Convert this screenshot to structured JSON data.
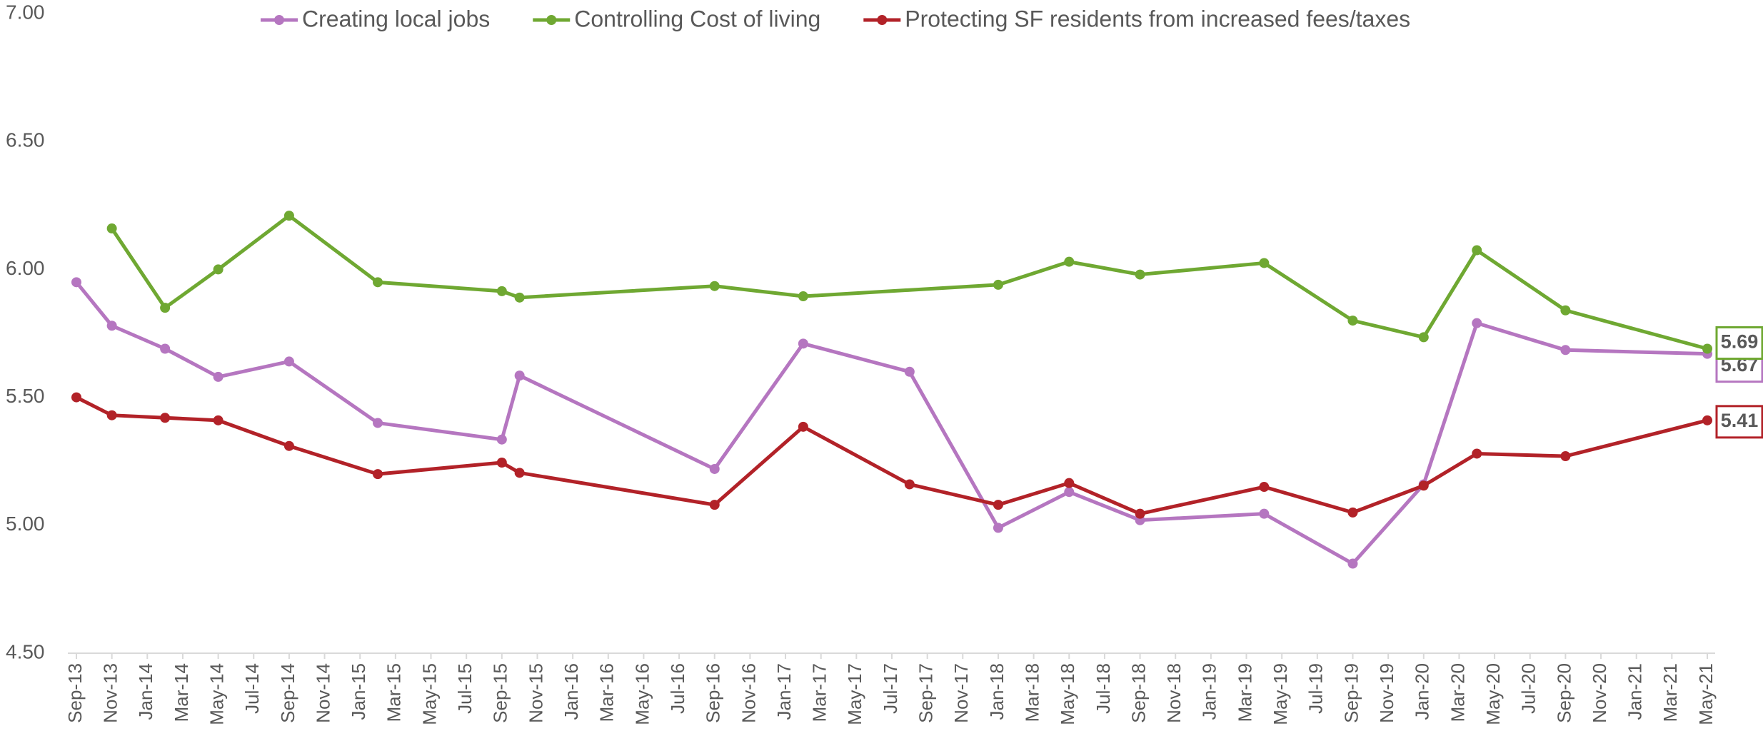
{
  "chart_data": {
    "type": "line",
    "legend": "top",
    "ylim": [
      4.5,
      7.0
    ],
    "yticks": [
      {
        "value": 4.5,
        "label": "4.50"
      },
      {
        "value": 5.0,
        "label": "5.00"
      },
      {
        "value": 5.5,
        "label": "5.50"
      },
      {
        "value": 6.0,
        "label": "6.00"
      },
      {
        "value": 6.5,
        "label": "6.50"
      },
      {
        "value": 7.0,
        "label": "7.00"
      }
    ],
    "xlim": [
      "Sep-13",
      "May-21"
    ],
    "xticks": [
      "Sep-13",
      "Nov-13",
      "Jan-14",
      "Mar-14",
      "May-14",
      "Jul-14",
      "Sep-14",
      "Nov-14",
      "Jan-15",
      "Mar-15",
      "May-15",
      "Jul-15",
      "Sep-15",
      "Nov-15",
      "Jan-16",
      "Mar-16",
      "May-16",
      "Jul-16",
      "Sep-16",
      "Nov-16",
      "Jan-17",
      "Mar-17",
      "May-17",
      "Jul-17",
      "Sep-17",
      "Nov-17",
      "Jan-18",
      "Mar-18",
      "May-18",
      "Jul-18",
      "Sep-18",
      "Nov-18",
      "Jan-19",
      "Mar-19",
      "May-19",
      "Jul-19",
      "Sep-19",
      "Nov-19",
      "Jan-20",
      "Mar-20",
      "May-20",
      "Jul-20",
      "Sep-20",
      "Nov-20",
      "Jan-21",
      "Mar-21",
      "May-21"
    ],
    "series": [
      {
        "name": "Creating local jobs",
        "color": "#b576c0",
        "x": [
          "Sep-13",
          "Nov-13",
          "Feb-14",
          "May-14",
          "Sep-14",
          "Feb-15",
          "Sep-15",
          "Oct-15",
          "Sep-16",
          "Feb-17",
          "Aug-17",
          "Jan-18",
          "May-18",
          "Sep-18",
          "Apr-19",
          "Sep-19",
          "Jan-20",
          "Apr-20",
          "Sep-20",
          "May-21"
        ],
        "values": [
          5.95,
          5.78,
          5.69,
          5.58,
          5.64,
          5.4,
          5.335,
          5.585,
          5.22,
          5.71,
          5.6,
          4.99,
          5.13,
          5.02,
          5.045,
          4.85,
          5.16,
          5.79,
          5.685,
          5.67
        ]
      },
      {
        "name": "Controlling Cost of living",
        "color": "#6fa832",
        "x": [
          "Nov-13",
          "Feb-14",
          "May-14",
          "Sep-14",
          "Feb-15",
          "Sep-15",
          "Oct-15",
          "Sep-16",
          "Feb-17",
          "Jan-18",
          "May-18",
          "Sep-18",
          "Apr-19",
          "Sep-19",
          "Jan-20",
          "Apr-20",
          "Sep-20",
          "May-21"
        ],
        "values": [
          6.16,
          5.85,
          6.0,
          6.21,
          5.95,
          5.915,
          5.89,
          5.935,
          5.895,
          5.94,
          6.03,
          5.98,
          6.025,
          5.8,
          5.735,
          6.075,
          5.84,
          5.69
        ]
      },
      {
        "name": "Protecting SF residents from increased fees/taxes",
        "color": "#b22228",
        "x": [
          "Sep-13",
          "Nov-13",
          "Feb-14",
          "May-14",
          "Sep-14",
          "Feb-15",
          "Sep-15",
          "Oct-15",
          "Sep-16",
          "Feb-17",
          "Aug-17",
          "Jan-18",
          "May-18",
          "Sep-18",
          "Apr-19",
          "Sep-19",
          "Jan-20",
          "Apr-20",
          "Sep-20",
          "May-21"
        ],
        "values": [
          5.5,
          5.43,
          5.42,
          5.41,
          5.31,
          5.2,
          5.245,
          5.205,
          5.08,
          5.385,
          5.16,
          5.08,
          5.165,
          5.045,
          5.15,
          5.05,
          5.155,
          5.28,
          5.27,
          5.41
        ]
      }
    ]
  }
}
